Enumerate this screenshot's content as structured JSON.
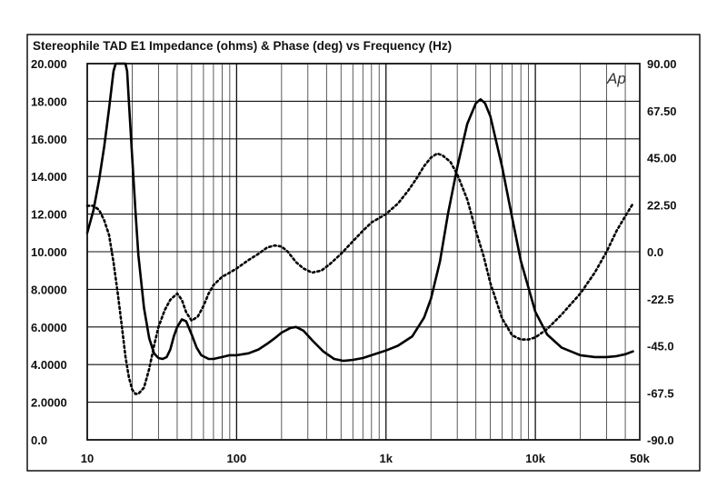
{
  "chart_data": {
    "type": "line",
    "title": "Stereophile  TAD E1  Impedance (ohms) & Phase (deg) vs Frequency (Hz)",
    "logo": "Ap",
    "x_scale": "log",
    "xlim": [
      10,
      50000
    ],
    "x_ticks": [
      10,
      100,
      1000,
      10000,
      50000
    ],
    "x_tick_labels": [
      "10",
      "100",
      "1k",
      "10k",
      "50k"
    ],
    "ylim_left": [
      0,
      20
    ],
    "y_left_ticks": [
      0,
      2,
      4,
      6,
      8,
      10,
      12,
      14,
      16,
      18,
      20
    ],
    "y_left_tick_labels": [
      "0.0",
      "2.0000",
      "4.0000",
      "6.0000",
      "8.0000",
      "10.000",
      "12.000",
      "14.000",
      "16.000",
      "18.000",
      "20.000"
    ],
    "ylim_right": [
      -90,
      90
    ],
    "y_right_ticks": [
      -90,
      -67.5,
      -45,
      -22.5,
      0,
      22.5,
      45,
      67.5,
      90
    ],
    "y_right_tick_labels": [
      "-90.0",
      "-67.5",
      "-45.0",
      "-22.5",
      "0.0",
      "22.50",
      "45.00",
      "67.50",
      "90.00"
    ],
    "grid": true,
    "series": [
      {
        "style": "solid",
        "axis": "left",
        "points": [
          [
            10,
            11.0
          ],
          [
            11,
            12.2
          ],
          [
            12,
            13.8
          ],
          [
            13,
            15.6
          ],
          [
            14,
            17.6
          ],
          [
            15,
            19.6
          ],
          [
            15.5,
            20.0
          ],
          [
            18,
            20.0
          ],
          [
            18.5,
            19.6
          ],
          [
            19,
            18.0
          ],
          [
            20,
            15.0
          ],
          [
            21,
            12.2
          ],
          [
            22,
            9.8
          ],
          [
            24,
            7.0
          ],
          [
            26,
            5.4
          ],
          [
            28,
            4.6
          ],
          [
            30,
            4.35
          ],
          [
            32,
            4.3
          ],
          [
            34,
            4.4
          ],
          [
            36,
            4.8
          ],
          [
            38,
            5.5
          ],
          [
            40,
            6.0
          ],
          [
            43,
            6.4
          ],
          [
            46,
            6.3
          ],
          [
            50,
            5.6
          ],
          [
            54,
            4.9
          ],
          [
            58,
            4.5
          ],
          [
            65,
            4.3
          ],
          [
            70,
            4.3
          ],
          [
            80,
            4.4
          ],
          [
            90,
            4.5
          ],
          [
            100,
            4.5
          ],
          [
            120,
            4.6
          ],
          [
            140,
            4.8
          ],
          [
            160,
            5.1
          ],
          [
            180,
            5.4
          ],
          [
            200,
            5.7
          ],
          [
            230,
            5.95
          ],
          [
            250,
            6.0
          ],
          [
            280,
            5.8
          ],
          [
            320,
            5.3
          ],
          [
            380,
            4.7
          ],
          [
            450,
            4.3
          ],
          [
            520,
            4.2
          ],
          [
            600,
            4.25
          ],
          [
            700,
            4.35
          ],
          [
            800,
            4.5
          ],
          [
            1000,
            4.75
          ],
          [
            1200,
            5.0
          ],
          [
            1500,
            5.5
          ],
          [
            1800,
            6.5
          ],
          [
            2000,
            7.5
          ],
          [
            2300,
            9.5
          ],
          [
            2600,
            12.0
          ],
          [
            3000,
            14.5
          ],
          [
            3500,
            16.8
          ],
          [
            4000,
            17.9
          ],
          [
            4300,
            18.1
          ],
          [
            4600,
            17.9
          ],
          [
            5000,
            17.2
          ],
          [
            6000,
            14.5
          ],
          [
            7000,
            11.8
          ],
          [
            8000,
            9.5
          ],
          [
            10000,
            6.8
          ],
          [
            12000,
            5.6
          ],
          [
            15000,
            4.9
          ],
          [
            20000,
            4.5
          ],
          [
            25000,
            4.4
          ],
          [
            30000,
            4.4
          ],
          [
            35000,
            4.45
          ],
          [
            40000,
            4.55
          ],
          [
            45000,
            4.7
          ]
        ]
      },
      {
        "style": "dotted",
        "axis": "right",
        "points": [
          [
            10,
            22
          ],
          [
            11,
            22
          ],
          [
            12,
            20
          ],
          [
            13,
            15
          ],
          [
            14,
            8
          ],
          [
            15,
            -5
          ],
          [
            16,
            -20
          ],
          [
            17,
            -35
          ],
          [
            18,
            -50
          ],
          [
            19,
            -60
          ],
          [
            20,
            -66
          ],
          [
            21,
            -68
          ],
          [
            22,
            -68
          ],
          [
            24,
            -65
          ],
          [
            26,
            -56
          ],
          [
            28,
            -45
          ],
          [
            30,
            -36
          ],
          [
            33,
            -28
          ],
          [
            36,
            -23
          ],
          [
            40,
            -20
          ],
          [
            43,
            -23
          ],
          [
            46,
            -29
          ],
          [
            50,
            -33
          ],
          [
            55,
            -31
          ],
          [
            60,
            -26
          ],
          [
            65,
            -20
          ],
          [
            70,
            -16
          ],
          [
            80,
            -12
          ],
          [
            90,
            -10
          ],
          [
            100,
            -8
          ],
          [
            120,
            -4
          ],
          [
            140,
            -1
          ],
          [
            160,
            2
          ],
          [
            180,
            3
          ],
          [
            200,
            2.5
          ],
          [
            220,
            0
          ],
          [
            250,
            -5
          ],
          [
            280,
            -8
          ],
          [
            320,
            -10
          ],
          [
            370,
            -9
          ],
          [
            420,
            -6
          ],
          [
            500,
            -1
          ],
          [
            600,
            5
          ],
          [
            700,
            10
          ],
          [
            800,
            14
          ],
          [
            1000,
            18
          ],
          [
            1200,
            23
          ],
          [
            1400,
            29
          ],
          [
            1600,
            35
          ],
          [
            1800,
            41
          ],
          [
            2000,
            45
          ],
          [
            2200,
            47
          ],
          [
            2400,
            46
          ],
          [
            2700,
            43
          ],
          [
            3000,
            37
          ],
          [
            3500,
            25
          ],
          [
            4000,
            10
          ],
          [
            4500,
            -2
          ],
          [
            5000,
            -15
          ],
          [
            6000,
            -32
          ],
          [
            7000,
            -40
          ],
          [
            8000,
            -42
          ],
          [
            9000,
            -42
          ],
          [
            10000,
            -41
          ],
          [
            12000,
            -37
          ],
          [
            15000,
            -30
          ],
          [
            20000,
            -20
          ],
          [
            25000,
            -10
          ],
          [
            30000,
            0
          ],
          [
            35000,
            10
          ],
          [
            40000,
            17
          ],
          [
            45000,
            23
          ]
        ]
      }
    ]
  }
}
